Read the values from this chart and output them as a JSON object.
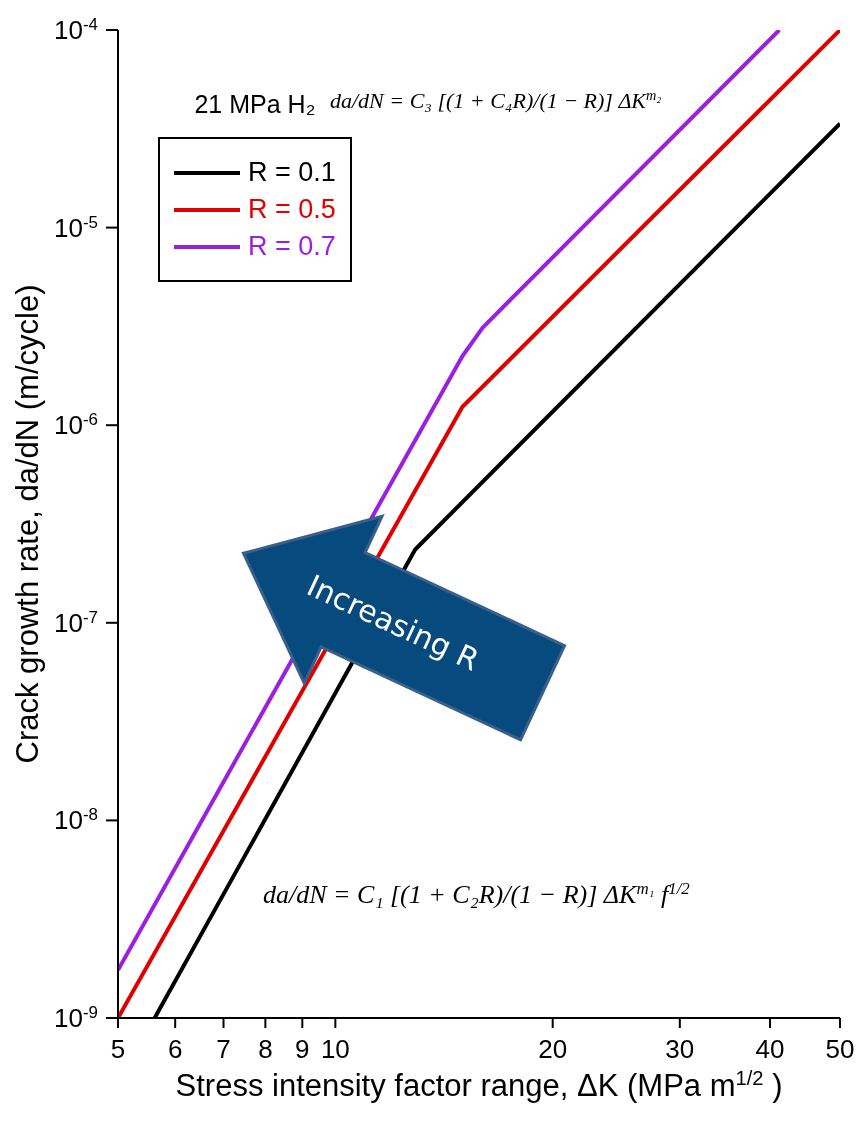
{
  "chart_data": {
    "type": "line",
    "xlabel": "Stress intensity factor range, ΔK (MPa m$^{1/2}$)",
    "ylabel": "Crack growth rate, da/dN (m/cycle)",
    "legend_title": "21 MPa H₂",
    "log": "xy",
    "xlim": [
      5,
      50
    ],
    "ylim": [
      1e-09,
      0.0001
    ],
    "xticks": [
      5,
      6,
      7,
      8,
      9,
      10,
      20,
      30,
      40,
      50
    ],
    "yticks": [
      {
        "value": 1e-09,
        "label": "10$^{-9}$"
      },
      {
        "value": 1e-08,
        "label": "10$^{-8}$"
      },
      {
        "value": 1e-07,
        "label": "10$^{-7}$"
      },
      {
        "value": 1e-06,
        "label": "10$^{-6}$"
      },
      {
        "value": 1e-05,
        "label": "10$^{-5}$"
      },
      {
        "value": 0.0001,
        "label": "10$^{-4}$"
      }
    ],
    "legend": "top left",
    "marker": "none",
    "line_style": "solid",
    "series": [
      {
        "name": "R = 0.1",
        "color": "#000000",
        "x": [
          5.62,
          12.9,
          50
        ],
        "values": [
          1e-09,
          2.35e-07,
          3.36e-05
        ]
      },
      {
        "name": "R = 0.5",
        "color": "#e00000",
        "x": [
          5,
          15,
          50
        ],
        "values": [
          1e-09,
          1.24e-06,
          0.0001
        ]
      },
      {
        "name": "R = 0.7",
        "color": "#9b1fe0",
        "x": [
          5,
          15,
          16,
          41.2
        ],
        "values": [
          1.75e-09,
          2.24e-06,
          3.12e-06,
          0.0001
        ]
      }
    ],
    "annotations": [
      "da/dN = C₃ [(1 + C₄R)/(1 − R)] ΔK$^{m₂}$",
      "da/dN = C₁ [(1 + C₂R)/(1 − R)] ΔK$^{m₁}$f$^{1/2}$",
      "Increasing R"
    ]
  }
}
